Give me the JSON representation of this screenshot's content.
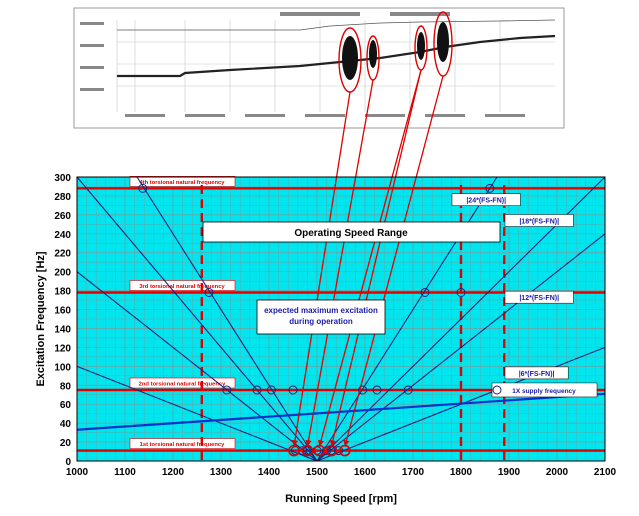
{
  "chart_data": {
    "type": "line",
    "title": "",
    "xlabel": "Running Speed [rpm]",
    "ylabel": "Excitation Frequency [Hz]",
    "xlim": [
      1000,
      2100
    ],
    "ylim": [
      0,
      300
    ],
    "x_ticks": [
      1000,
      1100,
      1200,
      1300,
      1400,
      1500,
      1600,
      1700,
      1800,
      1900,
      2000,
      2100
    ],
    "y_ticks": [
      0,
      20,
      40,
      60,
      80,
      100,
      120,
      140,
      160,
      180,
      200,
      220,
      240,
      260,
      280,
      300
    ],
    "grid": true,
    "background_color": "#00e5ee",
    "natural_frequencies": [
      {
        "label": "1st torsional natural frequency",
        "value": 11,
        "color": "#e00000"
      },
      {
        "label": "2nd torsional natural frequency",
        "value": 75,
        "color": "#e00000"
      },
      {
        "label": "3rd torsional natural frequency",
        "value": 178,
        "color": "#e00000"
      },
      {
        "label": "4th torsional natural frequency",
        "value": 288,
        "color": "#e00000"
      }
    ],
    "vertical_markers_rpm": [
      1260,
      1800,
      1890
    ],
    "operating_speed_range_label": "Operating Speed Range",
    "annotation": "expected maximum excitation during operation",
    "supply_frequency_line": {
      "label": "1X supply frequency",
      "x": [
        1000,
        2100
      ],
      "y": [
        33,
        71
      ],
      "color": "#0033cc"
    },
    "harmonic_series": [
      {
        "name": "|6*(FS-FN)|",
        "label_y": 92,
        "points": [
          [
            1000,
            100
          ],
          [
            1500,
            0
          ],
          [
            2100,
            120
          ]
        ]
      },
      {
        "name": "|12*(FS-FN)|",
        "label_y": 172,
        "points": [
          [
            1000,
            200
          ],
          [
            1500,
            0
          ],
          [
            2100,
            240
          ]
        ]
      },
      {
        "name": "|18*(FS-FN)|",
        "label_y": 253,
        "points": [
          [
            1000,
            300
          ],
          [
            1500,
            0
          ],
          [
            2100,
            300
          ]
        ]
      },
      {
        "name": "|24*(FS-FN)|",
        "label_y": 275,
        "points": [
          [
            1125,
            300
          ],
          [
            1500,
            0
          ],
          [
            1875,
            300
          ]
        ]
      }
    ],
    "intersection_points": [
      [
        1137,
        288
      ],
      [
        1275,
        178
      ],
      [
        1312,
        75
      ],
      [
        1375,
        75
      ],
      [
        1405,
        75
      ],
      [
        1450,
        75
      ],
      [
        1455,
        11
      ],
      [
        1470,
        11
      ],
      [
        1480,
        11
      ],
      [
        1500,
        11
      ],
      [
        1520,
        11
      ],
      [
        1530,
        11
      ],
      [
        1545,
        11
      ],
      [
        1595,
        75
      ],
      [
        1625,
        75
      ],
      [
        1690,
        75
      ],
      [
        1725,
        178
      ],
      [
        1800,
        178
      ],
      [
        1860,
        288
      ],
      [
        1875,
        75
      ]
    ],
    "highlighted_points": [
      [
        1452,
        11
      ],
      [
        1480,
        11
      ],
      [
        1505,
        11
      ],
      [
        1530,
        11
      ],
      [
        1558,
        11
      ]
    ],
    "spectrogram_links": [
      {
        "from_peak": 0,
        "to": [
          1452,
          11
        ]
      },
      {
        "from_peak": 1,
        "to": [
          1480,
          11
        ]
      },
      {
        "from_peak": 2,
        "to": [
          1530,
          11
        ]
      },
      {
        "from_peak": 3,
        "to": [
          1558,
          11
        ]
      },
      {
        "from_peak": 2,
        "to": [
          1505,
          11
        ]
      }
    ]
  }
}
